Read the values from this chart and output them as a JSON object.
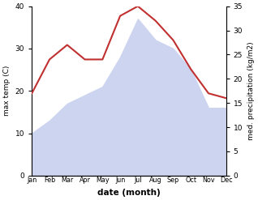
{
  "months": [
    "Jan",
    "Feb",
    "Mar",
    "Apr",
    "May",
    "Jun",
    "Jul",
    "Aug",
    "Sep",
    "Oct",
    "Nov",
    "Dec"
  ],
  "x": [
    1,
    2,
    3,
    4,
    5,
    6,
    7,
    8,
    9,
    10,
    11,
    12
  ],
  "temp": [
    10,
    13,
    17,
    19,
    21,
    28,
    37,
    32,
    30,
    25,
    16,
    16
  ],
  "precip": [
    17,
    24,
    27,
    24,
    24,
    33,
    35,
    32,
    28,
    22,
    17,
    16
  ],
  "precip_color": "#c03030",
  "fill_color": "#ccd4f0",
  "temp_ylim": [
    0,
    40
  ],
  "precip_ylim": [
    0,
    35
  ],
  "temp_ylabel": "max temp (C)",
  "precip_ylabel": "med. precipitation (kg/m2)",
  "xlabel": "date (month)",
  "bg_color": "#ffffff"
}
